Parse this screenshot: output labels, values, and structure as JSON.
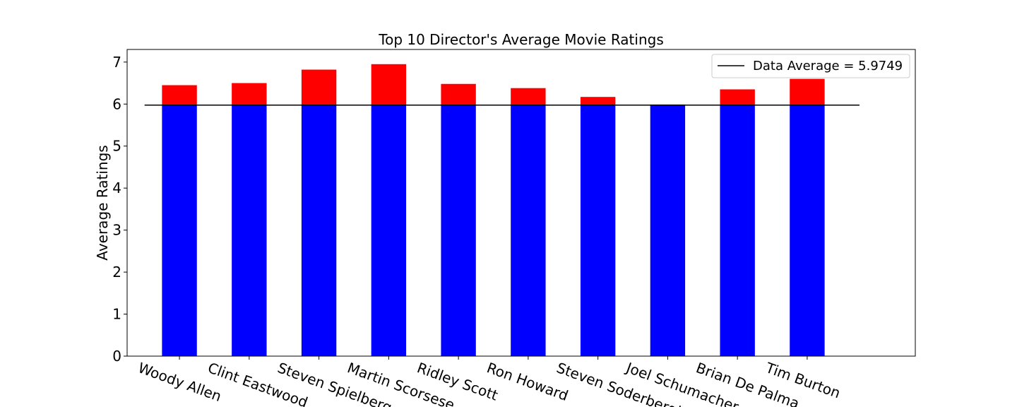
{
  "chart_data": {
    "type": "bar",
    "title": "Top 10 Director's Average Movie Ratings",
    "xlabel": "",
    "ylabel": "Average Ratings",
    "ylim": [
      0,
      7.3
    ],
    "yticks": [
      0,
      1,
      2,
      3,
      4,
      5,
      6,
      7
    ],
    "categories": [
      "Woody Allen",
      "Clint Eastwood",
      "Steven Spielberg",
      "Martin Scorsese",
      "Ridley Scott",
      "Ron Howard",
      "Steven Soderbergh",
      "Joel Schumacher",
      "Brian De Palma",
      "Tim Burton"
    ],
    "values": [
      6.45,
      6.5,
      6.82,
      6.95,
      6.48,
      6.38,
      6.17,
      5.99,
      6.35,
      6.6
    ],
    "baseline": 5.9749,
    "legend": {
      "label": "Data Average = 5.9749",
      "position": "upper-right"
    },
    "grid": false,
    "colors": {
      "below_average": "#0000ff",
      "above_average": "#ff0000",
      "average_line": "#000000"
    }
  }
}
